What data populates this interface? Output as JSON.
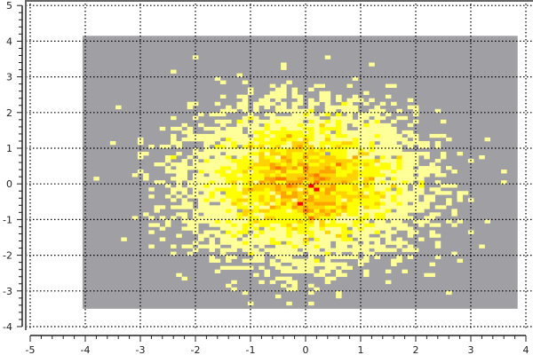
{
  "chart_data": {
    "type": "heatmap",
    "title": "",
    "xlabel": "",
    "ylabel": "",
    "xlim": [
      -5,
      4
    ],
    "ylim": [
      -4,
      5
    ],
    "xticks": [
      "-5",
      "-4",
      "-3",
      "-2",
      "-1",
      "0",
      "1",
      "2",
      "3",
      "4"
    ],
    "yticks": [
      "-4",
      "-3",
      "-2",
      "-1",
      "0",
      "1",
      "2",
      "3",
      "4",
      "5"
    ],
    "grid": true,
    "histogram_range": {
      "x": [
        -4.05,
        3.85
      ],
      "y": [
        -3.5,
        4.15
      ]
    },
    "bin_size": {
      "x": 0.1,
      "y": 0.1
    },
    "distribution": {
      "shape": "2D gaussian",
      "mean": [
        0,
        0
      ],
      "std": [
        1,
        1
      ]
    },
    "colors": {
      "empty": "#a0a0a4",
      "scale": [
        "#ffff99",
        "#ffff00",
        "#ffd200",
        "#ffa500",
        "#ff7800",
        "#ff0000"
      ]
    }
  }
}
